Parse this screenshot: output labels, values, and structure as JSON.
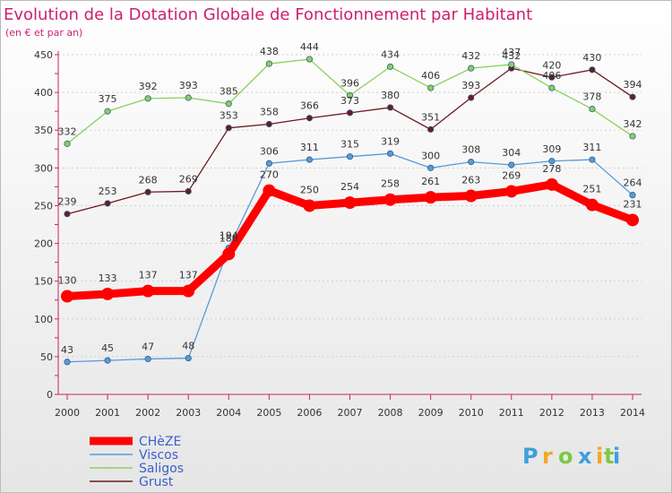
{
  "chart_data": {
    "type": "line",
    "title": "Evolution de la Dotation Globale de Fonctionnement par Habitant",
    "subtitle": "(en € et par an)",
    "xlabel": "",
    "ylabel": "",
    "ylim": [
      0,
      450
    ],
    "yticks": [
      0,
      50,
      100,
      150,
      200,
      250,
      300,
      350,
      400,
      450
    ],
    "categories": [
      "2000",
      "2001",
      "2002",
      "2003",
      "2004",
      "2005",
      "2006",
      "2007",
      "2008",
      "2009",
      "2010",
      "2011",
      "2012",
      "2013",
      "2014"
    ],
    "series": [
      {
        "name": "Grust",
        "color": "#6b1a1f",
        "values": [
          239,
          253,
          268,
          269,
          353,
          358,
          366,
          373,
          380,
          351,
          393,
          432,
          420,
          430,
          394
        ]
      },
      {
        "name": "Saligos",
        "color": "#88d15a",
        "values": [
          332,
          375,
          392,
          393,
          385,
          438,
          444,
          396,
          434,
          406,
          432,
          437,
          406,
          378,
          342
        ]
      },
      {
        "name": "Viscos",
        "color": "#5a9ad6",
        "values": [
          43,
          45,
          47,
          48,
          194,
          306,
          311,
          315,
          319,
          300,
          308,
          304,
          309,
          311,
          264
        ]
      },
      {
        "name": "CHèZE",
        "color": "#ff0000",
        "values": [
          130,
          133,
          137,
          137,
          186,
          270,
          250,
          254,
          258,
          261,
          263,
          269,
          278,
          251,
          231
        ]
      }
    ],
    "legend": [
      "CHèZE",
      "Viscos",
      "Saligos",
      "Grust"
    ],
    "legend_position": "bottom-left"
  },
  "brand": {
    "letters": [
      "P",
      "r",
      "o",
      "x",
      "i",
      "t",
      "i"
    ]
  }
}
